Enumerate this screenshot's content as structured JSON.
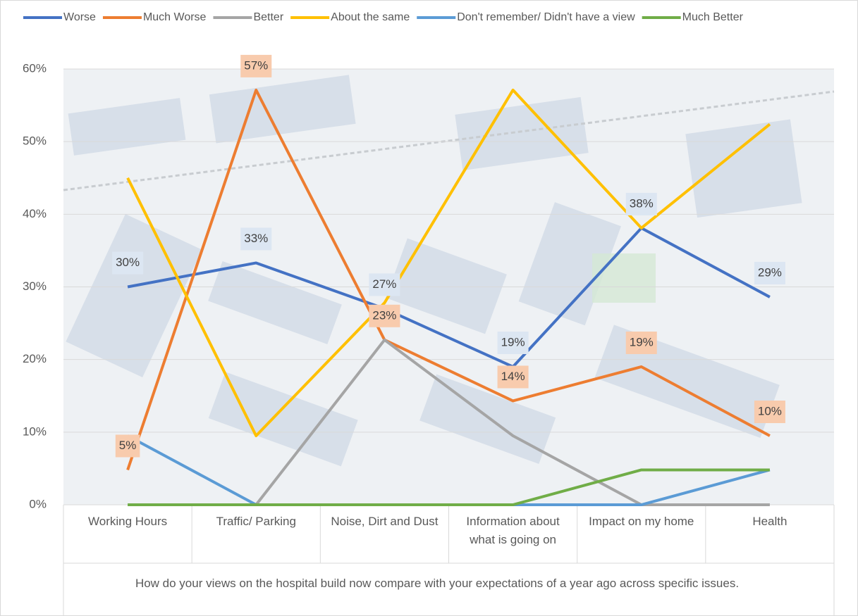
{
  "chart_data": {
    "type": "line",
    "x_axis_title": "How  do your views on the hospital  build now compare with your expectations of a year ago across specific issues.",
    "categories": [
      "Working Hours",
      "Traffic/ Parking",
      "Noise, Dirt and Dust",
      "Information about what is going on",
      "Impact on my home",
      "Health"
    ],
    "ylim": [
      0,
      60
    ],
    "yticks": [
      {
        "value": 0,
        "label": "0%"
      },
      {
        "value": 10,
        "label": "10%"
      },
      {
        "value": 20,
        "label": "20%"
      },
      {
        "value": 30,
        "label": "30%"
      },
      {
        "value": 40,
        "label": "40%"
      },
      {
        "value": 50,
        "label": "50%"
      },
      {
        "value": 60,
        "label": "60%"
      }
    ],
    "grid": true,
    "legend": "top",
    "series": [
      {
        "name": "Worse",
        "color": "#4472c4",
        "values": [
          30,
          33.3,
          27,
          19,
          38.1,
          28.6
        ],
        "value_labels": [
          "30%",
          "33%",
          "27%",
          "19%",
          "38%",
          "29%"
        ]
      },
      {
        "name": "Much Worse",
        "color": "#ed7d31",
        "values": [
          4.8,
          57.1,
          22.7,
          14.3,
          19,
          9.5
        ],
        "value_labels": [
          "5%",
          "57%",
          "23%",
          "14%",
          "19%",
          "10%"
        ]
      },
      {
        "name": "Better",
        "color": "#a5a5a5",
        "values": [
          null,
          0,
          22.7,
          9.5,
          0,
          0
        ]
      },
      {
        "name": "About the same",
        "color": "#ffc000",
        "values": [
          45,
          9.5,
          27.8,
          57.1,
          38.1,
          52.4
        ]
      },
      {
        "name": "Don't remember/ Didn't have a view",
        "color": "#5b9bd5",
        "values": [
          9.5,
          0,
          0,
          0,
          0,
          4.8
        ]
      },
      {
        "name": "Much Better",
        "color": "#70ad47",
        "values": [
          0,
          0,
          0,
          0,
          4.8,
          4.8
        ]
      }
    ]
  }
}
